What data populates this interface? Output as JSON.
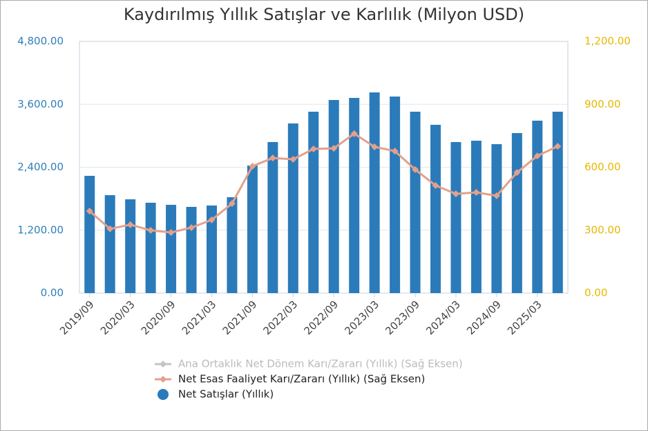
{
  "chart_data": {
    "type": "bar-line",
    "title": "Kaydırılmış Yıllık Satışlar ve Karlılık (Milyon USD)",
    "categories": [
      "2019/09",
      null,
      "2020/03",
      null,
      "2020/09",
      null,
      "2021/03",
      null,
      "2021/09",
      null,
      "2022/03",
      null,
      "2022/09",
      null,
      "2023/03",
      null,
      "2023/09",
      null,
      "2024/03",
      null,
      "2024/09",
      null,
      "2025/03",
      null
    ],
    "series": [
      {
        "name": "Ana Ortaklık Net Dönem Karı/Zararı (Yıllık) (Sağ Eksen)",
        "color": "#c4c4c4",
        "type": "line",
        "axis": "y2",
        "visible": false,
        "values": [
          null,
          null,
          null,
          null,
          null,
          null,
          null,
          null,
          null,
          null,
          null,
          null,
          null,
          null,
          null,
          null,
          null,
          null,
          null,
          null,
          null,
          null,
          null,
          null
        ]
      },
      {
        "name": "Net Esas Faaliyet Karı/Zararı (Yıllık) (Sağ Eksen)",
        "color": "#e3a08c",
        "type": "line",
        "axis": "y2",
        "values": [
          391,
          306,
          326,
          299,
          289,
          312,
          349,
          427,
          605,
          644,
          638,
          687,
          690,
          760,
          697,
          677,
          589,
          513,
          473,
          480,
          464,
          575,
          654,
          700
        ]
      },
      {
        "name": "Net Satışlar (Yıllık)",
        "color": "#2b7bba",
        "type": "bar",
        "values": [
          2236,
          1867,
          1788,
          1723,
          1683,
          1644,
          1670,
          1828,
          2433,
          2880,
          3235,
          3459,
          3682,
          3722,
          3827,
          3748,
          3459,
          3209,
          2880,
          2906,
          2840,
          3051,
          3288,
          3459
        ]
      }
    ],
    "ylim": [
      0,
      4800
    ],
    "yticks": [
      {
        "value": 0,
        "label": "0.00"
      },
      {
        "value": 1200,
        "label": "1,200.00"
      },
      {
        "value": 2400,
        "label": "2,400.00"
      },
      {
        "value": 3600,
        "label": "3,600.00"
      },
      {
        "value": 4800,
        "label": "4,800.00"
      }
    ],
    "y2lim": [
      0,
      1200
    ],
    "y2ticks": [
      {
        "value": 0,
        "label": "0.00"
      },
      {
        "value": 300,
        "label": "300.00"
      },
      {
        "value": 600,
        "label": "600.00"
      },
      {
        "value": 900,
        "label": "900.00"
      },
      {
        "value": 1200,
        "label": "1,200.00"
      }
    ],
    "ytick_color": "#2e7fb8",
    "y2tick_color": "#e6b800",
    "grid": true
  }
}
